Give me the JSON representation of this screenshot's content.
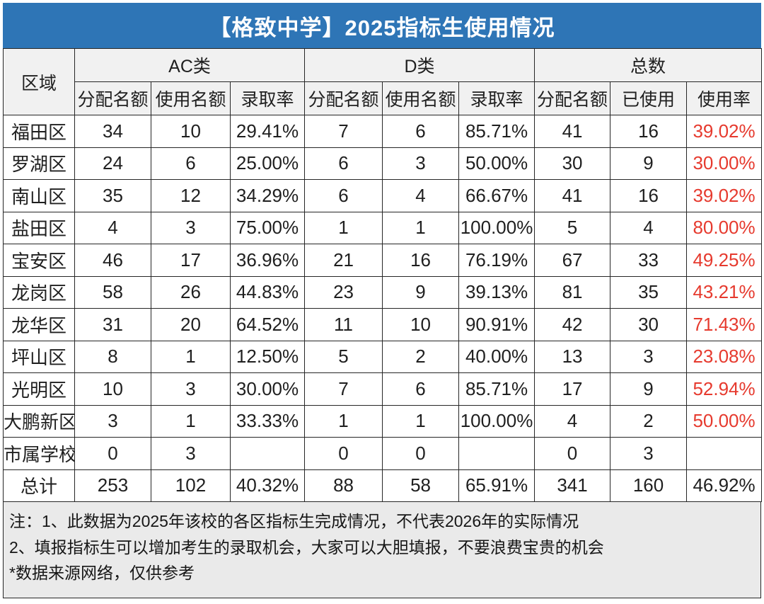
{
  "colors": {
    "title_bg": "#2e75b6",
    "title_text": "#ffffff",
    "header_bg": "#f1f1f1",
    "row_bg": "#ffffff",
    "footer_bg": "#eaeaea",
    "border": "#262626",
    "text": "#1f1f1f",
    "red_highlight": "#e63a2e"
  },
  "chart_data": {
    "type": "table",
    "title": "【格致中学】2025指标生使用情况",
    "region_header": "区域",
    "groups": [
      {
        "label": "AC类",
        "columns": [
          "分配名额",
          "使用名额",
          "录取率"
        ]
      },
      {
        "label": "D类",
        "columns": [
          "分配名额",
          "使用名额",
          "录取率"
        ]
      },
      {
        "label": "总数",
        "columns": [
          "分配名额",
          "已使用",
          "使用率"
        ]
      }
    ],
    "rows": [
      [
        "福田区",
        "34",
        "10",
        "29.41%",
        "7",
        "6",
        "85.71%",
        "41",
        "16",
        "39.02%"
      ],
      [
        "罗湖区",
        "24",
        "6",
        "25.00%",
        "6",
        "3",
        "50.00%",
        "30",
        "9",
        "30.00%"
      ],
      [
        "南山区",
        "35",
        "12",
        "34.29%",
        "6",
        "4",
        "66.67%",
        "41",
        "16",
        "39.02%"
      ],
      [
        "盐田区",
        "4",
        "3",
        "75.00%",
        "1",
        "1",
        "100.00%",
        "5",
        "4",
        "80.00%"
      ],
      [
        "宝安区",
        "46",
        "17",
        "36.96%",
        "21",
        "16",
        "76.19%",
        "67",
        "33",
        "49.25%"
      ],
      [
        "龙岗区",
        "58",
        "26",
        "44.83%",
        "23",
        "9",
        "39.13%",
        "81",
        "35",
        "43.21%"
      ],
      [
        "龙华区",
        "31",
        "20",
        "64.52%",
        "11",
        "10",
        "90.91%",
        "42",
        "30",
        "71.43%"
      ],
      [
        "坪山区",
        "8",
        "1",
        "12.50%",
        "5",
        "2",
        "40.00%",
        "13",
        "3",
        "23.08%"
      ],
      [
        "光明区",
        "10",
        "3",
        "30.00%",
        "7",
        "6",
        "85.71%",
        "17",
        "9",
        "52.94%"
      ],
      [
        "大鹏新区",
        "3",
        "1",
        "33.33%",
        "1",
        "1",
        "100.00%",
        "4",
        "2",
        "50.00%"
      ],
      [
        "市属学校",
        "0",
        "3",
        "",
        "0",
        "0",
        "",
        "0",
        "3",
        ""
      ],
      [
        "总计",
        "253",
        "102",
        "40.32%",
        "88",
        "58",
        "65.91%",
        "341",
        "160",
        "46.92%"
      ]
    ],
    "total_row_index": 11,
    "red_column_index": 9,
    "notes": [
      "注：1、此数据为2025年该校的各区指标生完成情况，不代表2026年的实际情况",
      "2、填报指标生可以增加考生的录取机会，大家可以大胆填报，不要浪费宝贵的机会",
      "*数据来源网络，仅供参考"
    ]
  }
}
